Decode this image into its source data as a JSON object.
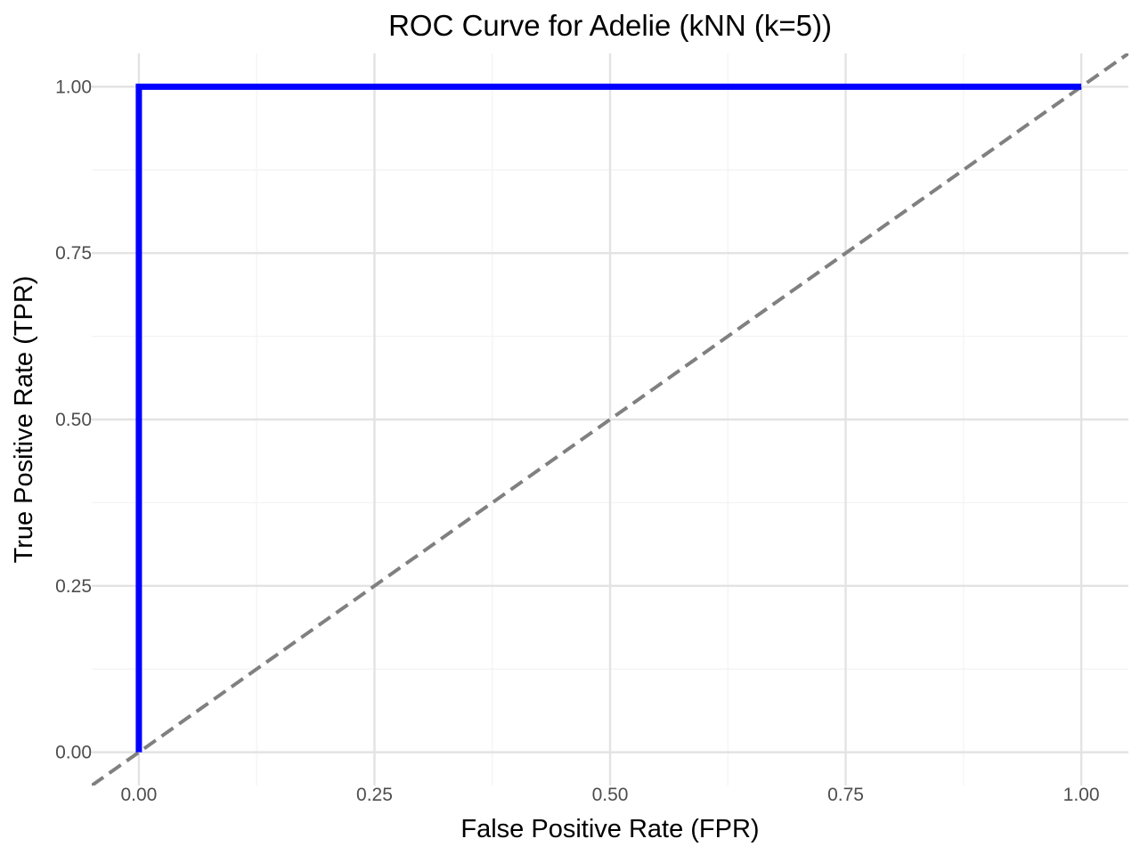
{
  "chart_data": {
    "type": "line",
    "title": "ROC Curve for Adelie (kNN (k=5))",
    "xlabel": "False Positive Rate (FPR)",
    "ylabel": "True Positive Rate (TPR)",
    "xlim": [
      -0.05,
      1.05
    ],
    "ylim": [
      -0.05,
      1.05
    ],
    "x_ticks": [
      0.0,
      0.25,
      0.5,
      0.75,
      1.0
    ],
    "x_tick_labels": [
      "0.00",
      "0.25",
      "0.50",
      "0.75",
      "1.00"
    ],
    "y_ticks": [
      0.0,
      0.25,
      0.5,
      0.75,
      1.0
    ],
    "y_tick_labels": [
      "0.00",
      "0.25",
      "0.50",
      "0.75",
      "1.00"
    ],
    "grid": true,
    "series": [
      {
        "color": "#0000ff",
        "style": "solid",
        "x": [
          0.0,
          0.0,
          1.0
        ],
        "y": [
          0.0,
          1.0,
          1.0
        ]
      },
      {
        "color": "#808080",
        "style": "dashed",
        "x": [
          -0.05,
          1.05
        ],
        "y": [
          -0.05,
          1.05
        ]
      }
    ]
  }
}
